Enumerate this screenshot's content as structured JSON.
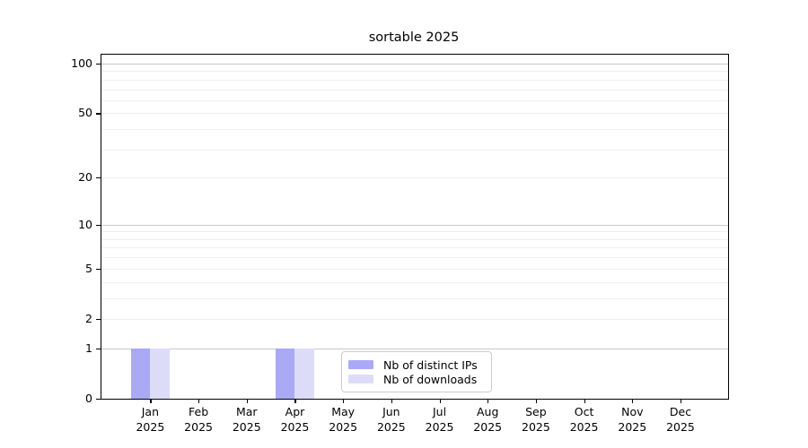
{
  "chart_data": {
    "type": "bar",
    "title": "sortable 2025",
    "categories": [
      "Jan",
      "Feb",
      "Mar",
      "Apr",
      "May",
      "Jun",
      "Jul",
      "Aug",
      "Sep",
      "Oct",
      "Nov",
      "Dec"
    ],
    "category_sub_label": "2025",
    "series": [
      {
        "name": "Nb of distinct IPs",
        "color": "#a9a9f5",
        "values": [
          1,
          0,
          0,
          1,
          0,
          0,
          0,
          0,
          0,
          0,
          0,
          0
        ]
      },
      {
        "name": "Nb of downloads",
        "color": "#dcdcf9",
        "values": [
          1,
          0,
          0,
          1,
          0,
          0,
          0,
          0,
          0,
          0,
          0,
          0
        ]
      }
    ],
    "xlabel": "",
    "ylabel": "",
    "y_scale": "log10(1+x)",
    "ylim": [
      0,
      113
    ],
    "y_ticks": [
      0,
      1,
      2,
      5,
      10,
      20,
      50,
      100
    ],
    "grid_major": [
      1,
      10,
      100
    ],
    "grid_minor": [
      2,
      3,
      4,
      5,
      6,
      7,
      8,
      9,
      20,
      30,
      40,
      50,
      60,
      70,
      80,
      90
    ],
    "legend_position": "bottom-center",
    "colors": {
      "axis": "#000000",
      "grid_major": "#c9c9c9",
      "grid_minor": "#eeeeee",
      "legend_border": "#cccccc",
      "background": "#ffffff"
    }
  }
}
